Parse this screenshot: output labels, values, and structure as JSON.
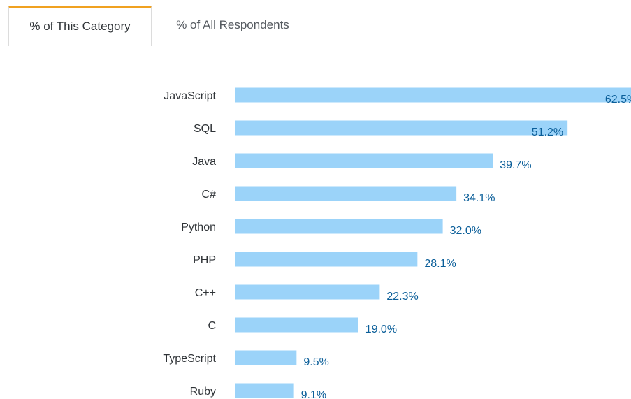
{
  "tabs": [
    {
      "label": "% of This Category",
      "active": true
    },
    {
      "label": "% of All Respondents",
      "active": false
    }
  ],
  "colors": {
    "bar": "#9bd3f9",
    "value_label": "#0a5e99",
    "active_tab_accent": "#f0a120"
  },
  "chart_data": {
    "type": "bar",
    "orientation": "horizontal",
    "categories": [
      "JavaScript",
      "SQL",
      "Java",
      "C#",
      "Python",
      "PHP",
      "C++",
      "C",
      "TypeScript",
      "Ruby"
    ],
    "values": [
      62.5,
      51.2,
      39.7,
      34.1,
      32.0,
      28.1,
      22.3,
      19.0,
      9.5,
      9.1
    ],
    "value_labels": [
      "62.5%",
      "51.2%",
      "39.7%",
      "34.1%",
      "32.0%",
      "28.1%",
      "22.3%",
      "19.0%",
      "9.5%",
      "9.1%"
    ],
    "unit": "%",
    "title": "",
    "xlabel": "",
    "ylabel": "",
    "grid": false,
    "legend": "none"
  }
}
